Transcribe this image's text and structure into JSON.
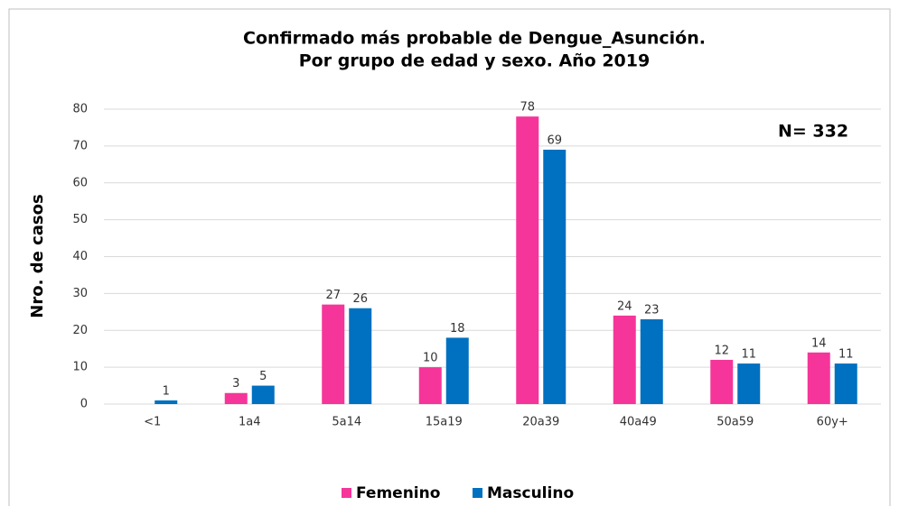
{
  "chart_data": {
    "type": "bar",
    "title": [
      "Confirmado más probable de Dengue_Asunción.",
      "Por grupo de edad y sexo. Año 2019"
    ],
    "ylabel": "Nro. de casos",
    "annotation": "N= 332",
    "categories": [
      "<1",
      "1a4",
      "5a14",
      "15a19",
      "20a39",
      "40a49",
      "50a59",
      "60y+"
    ],
    "series": [
      {
        "name": "Femenino",
        "color": "#f5359a",
        "values": [
          null,
          3,
          27,
          10,
          78,
          24,
          12,
          14
        ]
      },
      {
        "name": "Masculino",
        "color": "#0070c0",
        "values": [
          1,
          5,
          26,
          18,
          69,
          23,
          11,
          11
        ]
      }
    ],
    "ylim": [
      0,
      80
    ],
    "yticks": [
      0,
      10,
      20,
      30,
      40,
      50,
      60,
      70,
      80
    ],
    "grid": true,
    "legend": "bottom"
  }
}
